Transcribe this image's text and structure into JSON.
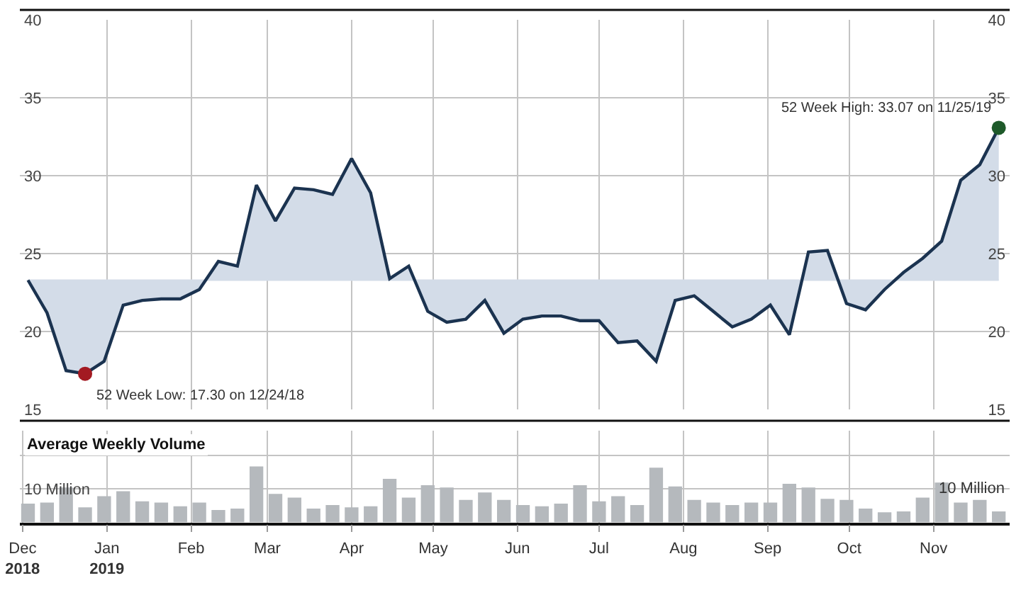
{
  "chart_data": [
    {
      "type": "area",
      "ylim": [
        15,
        40
      ],
      "yticks": [
        15,
        20,
        25,
        30,
        35,
        40
      ],
      "y2lim": [
        15,
        40
      ],
      "y2ticks": [
        15,
        20,
        25,
        30,
        35,
        40
      ],
      "xlim": [
        "2018-11-30",
        "2019-11-29"
      ],
      "xticks": [
        {
          "value": "2019-01-01",
          "label": null
        },
        {
          "value": "2019-02-01",
          "label": null
        },
        {
          "value": "2019-03-01",
          "label": null
        },
        {
          "value": "2019-04-01",
          "label": null
        },
        {
          "value": "2019-05-01",
          "label": null
        },
        {
          "value": "2019-06-01",
          "label": null
        },
        {
          "value": "2019-07-01",
          "label": null
        },
        {
          "value": "2019-08-01",
          "label": null
        },
        {
          "value": "2019-09-01",
          "label": null
        },
        {
          "value": "2019-10-01",
          "label": null
        },
        {
          "value": "2019-11-01",
          "label": null
        }
      ],
      "tick_labels": "y",
      "grid": true,
      "x": [
        "2018-12-03",
        "2018-12-10",
        "2018-12-17",
        "2018-12-24",
        "2018-12-31",
        "2019-01-07",
        "2019-01-14",
        "2019-01-21",
        "2019-01-28",
        "2019-02-04",
        "2019-02-11",
        "2019-02-18",
        "2019-02-25",
        "2019-03-04",
        "2019-03-11",
        "2019-03-18",
        "2019-03-25",
        "2019-04-01",
        "2019-04-08",
        "2019-04-15",
        "2019-04-22",
        "2019-04-29",
        "2019-05-06",
        "2019-05-13",
        "2019-05-20",
        "2019-05-27",
        "2019-06-03",
        "2019-06-10",
        "2019-06-17",
        "2019-06-24",
        "2019-07-01",
        "2019-07-08",
        "2019-07-15",
        "2019-07-22",
        "2019-07-29",
        "2019-08-05",
        "2019-08-12",
        "2019-08-19",
        "2019-08-26",
        "2019-09-02",
        "2019-09-09",
        "2019-09-16",
        "2019-09-23",
        "2019-09-30",
        "2019-10-07",
        "2019-10-14",
        "2019-10-21",
        "2019-10-28",
        "2019-11-04",
        "2019-11-11",
        "2019-11-18",
        "2019-11-25"
      ],
      "series": [
        {
          "type": "area",
          "color": "#1b3350",
          "values": [
            23.3,
            21.2,
            17.5,
            17.3,
            18.1,
            21.7,
            22.0,
            22.1,
            22.1,
            22.7,
            24.5,
            24.2,
            29.4,
            27.1,
            29.2,
            29.1,
            28.8,
            31.1,
            28.9,
            23.4,
            24.2,
            21.3,
            20.6,
            20.8,
            22.0,
            19.9,
            20.8,
            21.0,
            21.0,
            20.7,
            20.7,
            19.3,
            19.4,
            18.1,
            22.0,
            22.3,
            21.3,
            20.3,
            20.8,
            21.7,
            19.8,
            25.1,
            25.2,
            21.8,
            21.4,
            22.7,
            23.8,
            24.7,
            25.8,
            29.7,
            30.7,
            33.07
          ]
        },
        {
          "type": "scatter",
          "x": [
            "2018-12-24",
            "2019-11-25"
          ],
          "values": [
            17.3,
            33.07
          ],
          "colors": [
            "#a31a22",
            "#1e5a2a"
          ]
        }
      ],
      "ref_lines": [
        {
          "axis": "y",
          "value": 23.3,
          "color": "#d3dce8"
        }
      ],
      "annotations": [
        {
          "text": "52 Week Low: 17.30 on 12/24/18",
          "x": "2018-12-24",
          "y": 17.3
        },
        {
          "text": "52 Week High: 33.07 on 11/25/19",
          "x": "2019-11-25",
          "y": 33.07
        }
      ]
    },
    {
      "type": "bar",
      "title": "Average Weekly Volume",
      "color": "#b5b9bd",
      "grid": true,
      "ylim": [
        0,
        27.4
      ],
      "yticks": [
        {
          "value": 0,
          "label": null
        },
        {
          "value": 10,
          "label": "10 Million"
        },
        {
          "value": 20,
          "label": null
        }
      ],
      "annotations": [
        "10 Million"
      ],
      "xlim": [
        "2018-11-30",
        "2019-11-29"
      ],
      "xticks": [
        {
          "value": "2018-12-01",
          "label": "Dec\n2018"
        },
        {
          "value": "2019-01-01",
          "label": "Jan\n2019"
        },
        {
          "value": "2019-02-01",
          "label": "Feb"
        },
        {
          "value": "2019-03-01",
          "label": "Mar"
        },
        {
          "value": "2019-04-01",
          "label": "Apr"
        },
        {
          "value": "2019-05-01",
          "label": "May"
        },
        {
          "value": "2019-06-01",
          "label": "Jun"
        },
        {
          "value": "2019-07-01",
          "label": "Jul"
        },
        {
          "value": "2019-08-01",
          "label": "Aug"
        },
        {
          "value": "2019-09-01",
          "label": "Sep"
        },
        {
          "value": "2019-10-01",
          "label": "Oct"
        },
        {
          "value": "2019-11-01",
          "label": "Nov"
        }
      ],
      "x": [
        "2018-12-03",
        "2018-12-10",
        "2018-12-17",
        "2018-12-24",
        "2018-12-31",
        "2019-01-07",
        "2019-01-14",
        "2019-01-21",
        "2019-01-28",
        "2019-02-04",
        "2019-02-11",
        "2019-02-18",
        "2019-02-25",
        "2019-03-04",
        "2019-03-11",
        "2019-03-18",
        "2019-03-25",
        "2019-04-01",
        "2019-04-08",
        "2019-04-15",
        "2019-04-22",
        "2019-04-29",
        "2019-05-06",
        "2019-05-13",
        "2019-05-20",
        "2019-05-27",
        "2019-06-03",
        "2019-06-10",
        "2019-06-17",
        "2019-06-24",
        "2019-07-01",
        "2019-07-08",
        "2019-07-15",
        "2019-07-22",
        "2019-07-29",
        "2019-08-05",
        "2019-08-12",
        "2019-08-19",
        "2019-08-26",
        "2019-09-02",
        "2019-09-09",
        "2019-09-16",
        "2019-09-23",
        "2019-09-30",
        "2019-10-07",
        "2019-10-14",
        "2019-10-21",
        "2019-10-28",
        "2019-11-04",
        "2019-11-11",
        "2019-11-18",
        "2019-11-25"
      ],
      "values": [
        5.6,
        5.9,
        10.4,
        4.5,
        7.8,
        9.3,
        6.3,
        5.9,
        4.8,
        5.9,
        3.7,
        4.1,
        16.7,
        8.5,
        7.4,
        4.1,
        5.2,
        4.5,
        4.8,
        13.0,
        7.4,
        11.1,
        10.4,
        6.7,
        8.9,
        6.7,
        5.2,
        4.8,
        5.6,
        11.1,
        6.3,
        7.8,
        5.2,
        16.3,
        10.7,
        6.7,
        5.9,
        5.2,
        5.9,
        5.9,
        11.5,
        10.4,
        7.0,
        6.7,
        4.1,
        3.0,
        3.3,
        7.4,
        11.9,
        5.9,
        6.7,
        3.3
      ]
    }
  ]
}
